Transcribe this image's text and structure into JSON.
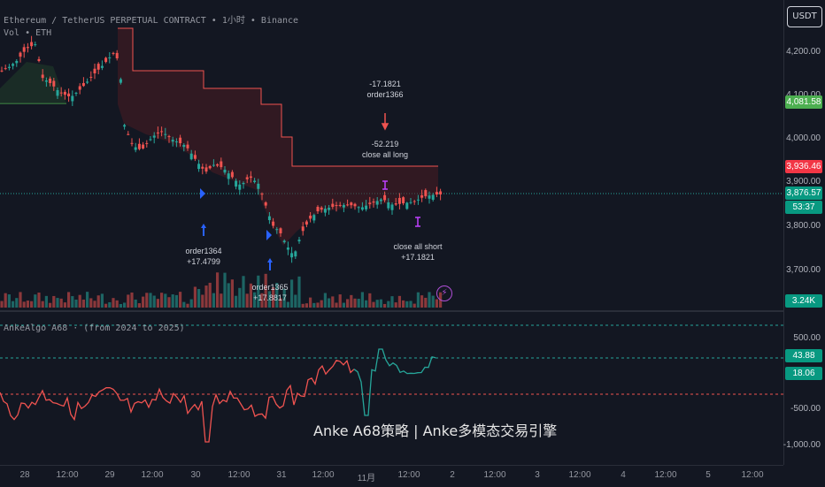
{
  "header": {
    "symbol_line": "Ethereum / TetherUS PERPETUAL CONTRACT • 1小时 • Binance",
    "vol_line": "Vol • ETH",
    "currency_button": "USDT"
  },
  "price_axis": {
    "ticks": [
      "4,200.00",
      "4,100.00",
      "4,000.00",
      "3,900.00",
      "3,800.00",
      "3,700.00"
    ],
    "tags": {
      "green_level": "4,081.58",
      "red_level": "3,936.46",
      "current_price": "3,876.57",
      "countdown": "53:37",
      "volume": "3.24K"
    }
  },
  "indicator": {
    "title": "AnkeAlgo A68 · (from 2024 to 2025)",
    "ticks": [
      "500.00",
      "-500.00",
      "-1,000.00"
    ],
    "tags": {
      "value_a": "43.88",
      "value_b": "18.06"
    }
  },
  "annotations": {
    "order1364": [
      "order1364",
      "+17.4799"
    ],
    "order1365": [
      "order1365",
      "+17.8817"
    ],
    "order1366": [
      "-17.1821",
      "order1366"
    ],
    "close_long": [
      "-52.219",
      "close all long"
    ],
    "close_short": [
      "close all short",
      "+17.1821"
    ]
  },
  "watermark": "Anke A68策略 | Anke多模态交易引擎",
  "time_axis": [
    "28",
    "12:00",
    "29",
    "12:00",
    "30",
    "12:00",
    "31",
    "12:00",
    "11月",
    "12:00",
    "2",
    "12:00",
    "3",
    "12:00",
    "4",
    "12:00",
    "5",
    "12:00"
  ],
  "colors": {
    "background": "#131722",
    "up": "#26a69a",
    "down": "#ef5350",
    "band_fill": "#4a1c22",
    "signal": "#c040ff",
    "long_arrow": "#2962ff",
    "green_tag": "#4caf50",
    "red_tag": "#f23645"
  }
}
